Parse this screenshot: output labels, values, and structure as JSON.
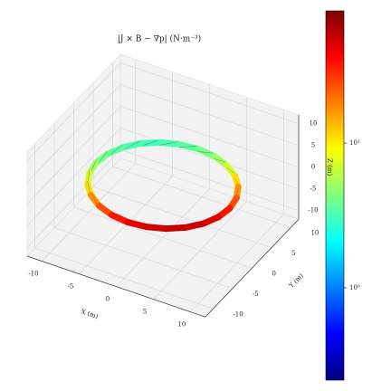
{
  "chart_data": {
    "type": "ring3d",
    "title": "|J × B − ∇p| (N·m⁻³)",
    "xlabel": "X (m)",
    "ylabel": "Y (m)",
    "zlabel": "Z (m)",
    "x": [
      9,
      8.69,
      7.79,
      6.36,
      4.5,
      2.33,
      0,
      -2.33,
      -4.5,
      -6.36,
      -7.79,
      -8.69,
      -9,
      -8.69,
      -7.79,
      -6.36,
      -4.5,
      -2.33,
      0,
      2.33,
      4.5,
      6.36,
      7.79,
      8.69
    ],
    "y": [
      0,
      2.33,
      4.5,
      6.36,
      7.79,
      8.69,
      9,
      8.69,
      7.79,
      6.36,
      4.5,
      2.33,
      0,
      -2.33,
      -4.5,
      -6.36,
      -7.79,
      -8.69,
      -9,
      -8.69,
      -7.79,
      -6.36,
      -4.5,
      -2.33
    ],
    "z": [
      0,
      0,
      0,
      0,
      0,
      0,
      0,
      0,
      0,
      0,
      0,
      0,
      0,
      0,
      0,
      0,
      0,
      0,
      0,
      0,
      0,
      0,
      0,
      0
    ],
    "values": [
      25,
      17,
      11,
      7,
      5,
      4,
      3.5,
      3.2,
      3,
      3.2,
      3.5,
      4,
      5,
      7,
      11,
      17,
      25,
      35,
      45,
      52,
      55,
      52,
      45,
      35
    ],
    "xlim": [
      -12,
      12
    ],
    "ylim": [
      -12,
      12
    ],
    "zlim": [
      -12,
      12
    ],
    "xticks": [
      -10,
      -5,
      0,
      5,
      10
    ],
    "yticks": [
      -10,
      -5,
      0,
      5,
      10
    ],
    "zticks": [
      -10,
      -5,
      0,
      5,
      10
    ],
    "colormap": "jet",
    "color_scale": "log",
    "clim": [
      0.23,
      82
    ],
    "cticks": [
      {
        "value": 1,
        "label": "10⁰"
      },
      {
        "value": 10,
        "label": "10¹"
      }
    ],
    "grid": true
  }
}
